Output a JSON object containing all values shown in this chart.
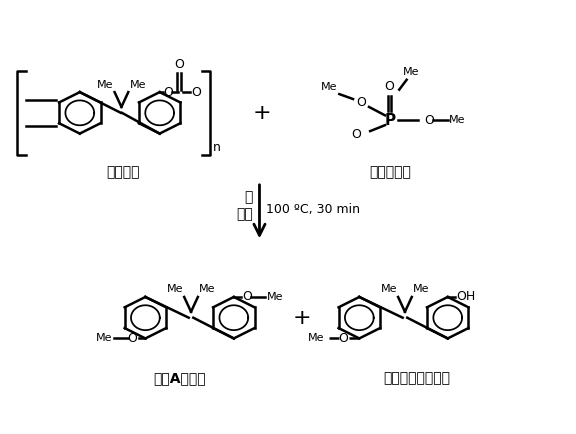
{
  "background_color": "#ffffff",
  "text_color": "#000000",
  "arrow_color": "#000000",
  "label_polycarbonate": "聚碳酸酯",
  "label_tmp": "磷酸三甲酯",
  "label_bpa_dimethyl": "双酚A二甲醚",
  "label_incomplete": "不完全甲基化产物",
  "condition_left": "碱\n溶剂",
  "condition_right": "100 ºC, 30 min",
  "plus_sign": "+",
  "figsize": [
    5.76,
    4.34
  ],
  "dpi": 100
}
